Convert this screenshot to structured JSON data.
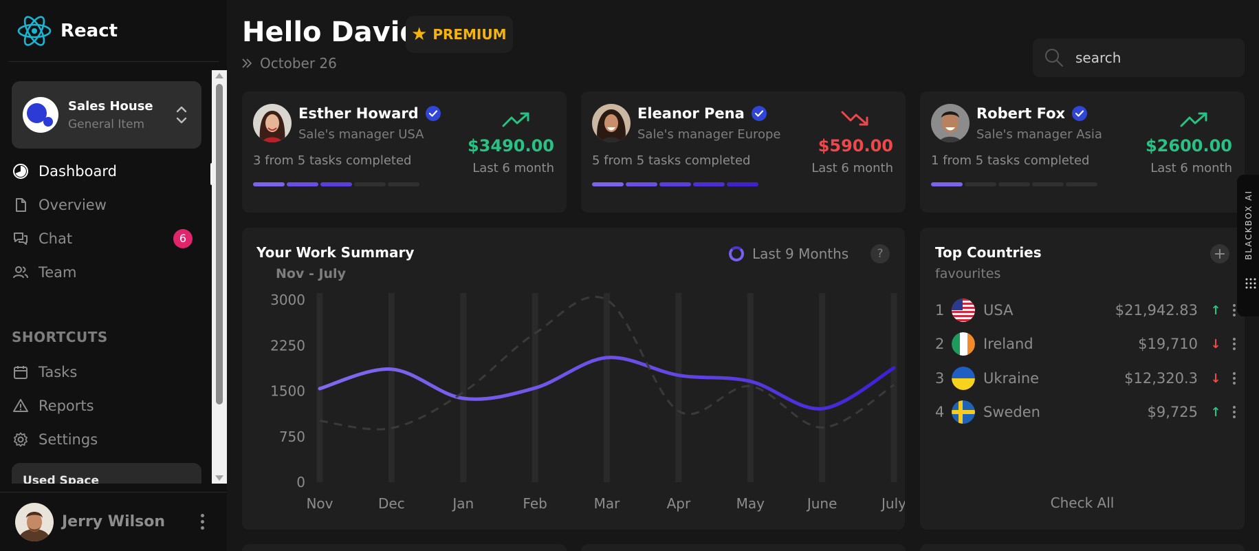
{
  "app": {
    "name": "React",
    "accent": "#6f52ee",
    "positive": "#28c284",
    "negative": "#f0474b"
  },
  "workspace": {
    "title": "Sales House",
    "subtitle": "General Item"
  },
  "nav": {
    "items": [
      {
        "label": "Dashboard",
        "icon": "dashboard-icon",
        "active": true
      },
      {
        "label": "Overview",
        "icon": "document-icon"
      },
      {
        "label": "Chat",
        "icon": "chat-icon",
        "badge": "6"
      },
      {
        "label": "Team",
        "icon": "team-icon"
      }
    ],
    "shortcuts_heading": "SHORTCUTS",
    "shortcuts": [
      {
        "label": "Tasks",
        "icon": "calendar-icon"
      },
      {
        "label": "Reports",
        "icon": "warning-icon"
      },
      {
        "label": "Settings",
        "icon": "gear-icon"
      }
    ],
    "used_space_label": "Used Space"
  },
  "profile": {
    "name": "Jerry Wilson"
  },
  "header": {
    "greeting": "Hello David",
    "premium_label": "PREMIUM",
    "date": "October 26",
    "search_placeholder": "search"
  },
  "managers": [
    {
      "name": "Esther Howard",
      "role": "Sale's manager USA",
      "tasks": "3 from 5 tasks completed",
      "completed": 3,
      "total": 5,
      "amount": "$3490.00",
      "period": "Last 6 month",
      "trend": "up"
    },
    {
      "name": "Eleanor Pena",
      "role": "Sale's manager Europe",
      "tasks": "5 from 5 tasks completed",
      "completed": 5,
      "total": 5,
      "amount": "$590.00",
      "period": "Last 6 month",
      "trend": "down"
    },
    {
      "name": "Robert Fox",
      "role": "Sale's manager Asia",
      "tasks": "1 from 5 tasks completed",
      "completed": 1,
      "total": 5,
      "amount": "$2600.00",
      "period": "Last 6 month",
      "trend": "up"
    }
  ],
  "work_summary": {
    "title": "Your Work Summary",
    "range_label": "Nov - July",
    "legend_label": "Last 9 Months",
    "help_label": "?"
  },
  "chart_data": {
    "type": "line",
    "categories": [
      "Nov",
      "Dec",
      "Jan",
      "Feb",
      "Mar",
      "Apr",
      "May",
      "June",
      "July"
    ],
    "yticks": [
      0,
      750,
      1500,
      2250,
      3000
    ],
    "ylim": [
      0,
      3000
    ],
    "series": [
      {
        "values": [
          1540,
          1860,
          1380,
          1550,
          2050,
          1760,
          1660,
          1210,
          1880
        ],
        "style": "solid",
        "color": "#6f52ee"
      },
      {
        "values": [
          1010,
          890,
          1480,
          2450,
          3000,
          1170,
          1580,
          900,
          1600
        ],
        "style": "dashed",
        "color": "#3a3a3a"
      }
    ],
    "grid": "vertical bars"
  },
  "countries": {
    "title": "Top Countries",
    "subtitle": "favourites",
    "add_label": "+",
    "check_all": "Check All",
    "items": [
      {
        "rank": "1",
        "name": "USA",
        "value": "$21,942.83",
        "trend": "up",
        "flag": "usa-flag-icon"
      },
      {
        "rank": "2",
        "name": "Ireland",
        "value": "$19,710",
        "trend": "down",
        "flag": "ireland-flag-icon"
      },
      {
        "rank": "3",
        "name": "Ukraine",
        "value": "$12,320.3",
        "trend": "down",
        "flag": "ukraine-flag-icon"
      },
      {
        "rank": "4",
        "name": "Sweden",
        "value": "$9,725",
        "trend": "up",
        "flag": "sweden-flag-icon"
      }
    ]
  },
  "blackbox": {
    "label": "BLACKBOX AI"
  }
}
